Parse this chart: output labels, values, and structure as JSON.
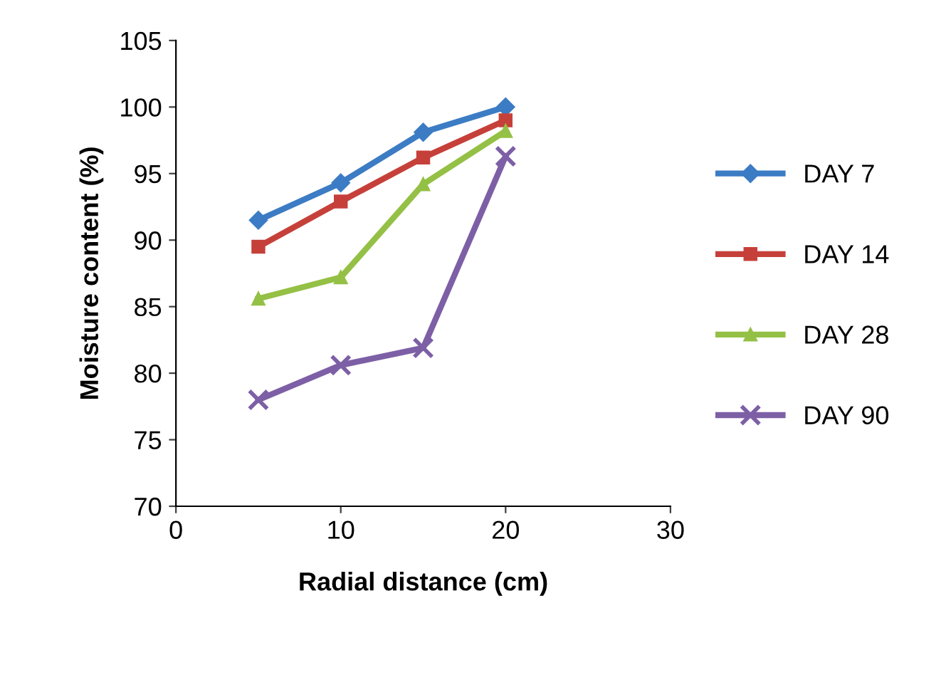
{
  "chart_data": {
    "type": "line",
    "xlabel": "Radial distance (cm)",
    "ylabel": "Moisture content (%)",
    "x": [
      5,
      10,
      15,
      20
    ],
    "series": [
      {
        "name": "DAY 7",
        "color": "#3c7cc4",
        "marker": "diamond",
        "values": [
          91.5,
          94.3,
          98.1,
          100
        ]
      },
      {
        "name": "DAY 14",
        "color": "#c6403a",
        "marker": "square",
        "values": [
          89.5,
          92.9,
          96.2,
          99.0
        ]
      },
      {
        "name": "DAY 28",
        "color": "#94c045",
        "marker": "triangle",
        "values": [
          85.6,
          87.2,
          94.2,
          98.2
        ]
      },
      {
        "name": "DAY 90",
        "color": "#7d5fa6",
        "marker": "cross",
        "values": [
          78.0,
          80.6,
          81.9,
          96.3
        ]
      }
    ],
    "xlim": [
      0,
      30
    ],
    "xticks": [
      0,
      10,
      20,
      30
    ],
    "ylim": [
      70,
      105
    ],
    "yticks": [
      70,
      75,
      80,
      85,
      90,
      95,
      100,
      105
    ],
    "grid": false,
    "legend": "right",
    "line_style": "solid"
  }
}
